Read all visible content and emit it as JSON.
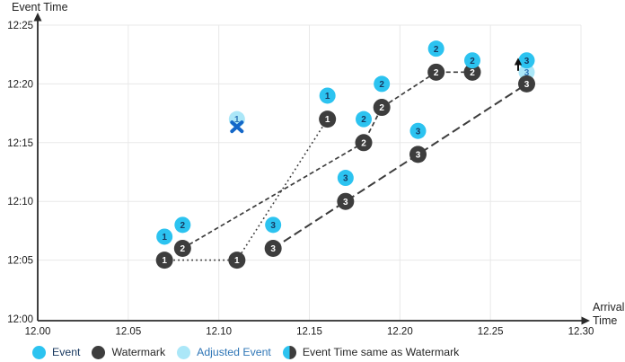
{
  "colors": {
    "event": "#2cc3f0",
    "adjusted": "#abe7f8",
    "watermark": "#3d3d3d",
    "line": "#3d3d3d",
    "grid": "#e8e8e8",
    "axis": "#2b2b2b",
    "tick_text": "#1a1a1a",
    "x_cross": "#1467c8",
    "event_number": "#17375e",
    "adjusted_number": "#2e75b6",
    "watermark_number": "#ffffff",
    "legend_event_text": "#17375e",
    "legend_adjusted_text": "#2e75b6",
    "legend_text": "#262626"
  },
  "chart_data": {
    "type": "scatter",
    "title": "",
    "xlabel": "Arrival Time",
    "xlabel_lines": [
      "Arrival",
      "Time"
    ],
    "ylabel": "Event Time",
    "xlim": [
      12.0,
      12.3
    ],
    "ylim": [
      0,
      25
    ],
    "grid": true,
    "legend_position": "bottom",
    "x_ticks": [
      {
        "value": 12.0,
        "label": "12.00"
      },
      {
        "value": 12.05,
        "label": "12.05"
      },
      {
        "value": 12.1,
        "label": "12.10"
      },
      {
        "value": 12.15,
        "label": "12.15"
      },
      {
        "value": 12.2,
        "label": "12.20"
      },
      {
        "value": 12.25,
        "label": "12.25"
      },
      {
        "value": 12.3,
        "label": "12.30"
      }
    ],
    "y_ticks": [
      {
        "minutes": 0,
        "label": "12:00"
      },
      {
        "minutes": 5,
        "label": "12:05"
      },
      {
        "minutes": 10,
        "label": "12:10"
      },
      {
        "minutes": 15,
        "label": "12:15"
      },
      {
        "minutes": 20,
        "label": "12:20"
      },
      {
        "minutes": 25,
        "label": "12:25"
      }
    ],
    "events": [
      {
        "id": "1",
        "arrival": 12.07,
        "event_minutes": 7,
        "event_time": "12:07"
      },
      {
        "id": "2",
        "arrival": 12.08,
        "event_minutes": 8,
        "event_time": "12:08"
      },
      {
        "id": "3",
        "arrival": 12.13,
        "event_minutes": 8,
        "event_time": "12:08"
      },
      {
        "id": "1",
        "arrival": 12.16,
        "event_minutes": 19,
        "event_time": "12:19"
      },
      {
        "id": "3",
        "arrival": 12.17,
        "event_minutes": 12,
        "event_time": "12:12"
      },
      {
        "id": "2",
        "arrival": 12.18,
        "event_minutes": 17,
        "event_time": "12:17"
      },
      {
        "id": "2",
        "arrival": 12.19,
        "event_minutes": 20,
        "event_time": "12:20"
      },
      {
        "id": "3",
        "arrival": 12.21,
        "event_minutes": 16,
        "event_time": "12:16"
      },
      {
        "id": "2",
        "arrival": 12.22,
        "event_minutes": 23,
        "event_time": "12:23"
      },
      {
        "id": "2",
        "arrival": 12.24,
        "event_minutes": 22,
        "event_time": "12:22"
      },
      {
        "id": "3",
        "arrival": 12.27,
        "event_minutes": 22,
        "event_time": "12:22"
      }
    ],
    "watermarks": [
      {
        "id": "1",
        "arrival": 12.07,
        "event_minutes": 5,
        "event_time": "12:05"
      },
      {
        "id": "2",
        "arrival": 12.08,
        "event_minutes": 6,
        "event_time": "12:06"
      },
      {
        "id": "1",
        "arrival": 12.11,
        "event_minutes": 5,
        "event_time": "12:05"
      },
      {
        "id": "3",
        "arrival": 12.13,
        "event_minutes": 6,
        "event_time": "12:06"
      },
      {
        "id": "1",
        "arrival": 12.16,
        "event_minutes": 17,
        "event_time": "12:17"
      },
      {
        "id": "3",
        "arrival": 12.17,
        "event_minutes": 10,
        "event_time": "12:10"
      },
      {
        "id": "2",
        "arrival": 12.18,
        "event_minutes": 15,
        "event_time": "12:15"
      },
      {
        "id": "2",
        "arrival": 12.19,
        "event_minutes": 18,
        "event_time": "12:18"
      },
      {
        "id": "3",
        "arrival": 12.21,
        "event_minutes": 14,
        "event_time": "12:14"
      },
      {
        "id": "2",
        "arrival": 12.22,
        "event_minutes": 21,
        "event_time": "12:21"
      },
      {
        "id": "2",
        "arrival": 12.24,
        "event_minutes": 21,
        "event_time": "12:21"
      },
      {
        "id": "3",
        "arrival": 12.27,
        "event_minutes": 20,
        "event_time": "12:20"
      }
    ],
    "adjusted_events": [
      {
        "id": "1",
        "arrival": 12.11,
        "event_minutes": 17,
        "event_time": "12:17",
        "annotation": "x-cross"
      },
      {
        "id": "3",
        "arrival": 12.27,
        "event_minutes": 21,
        "event_time": "12:21",
        "annotation": "up-arrow"
      }
    ],
    "watermark_lines": [
      {
        "id": "1",
        "style": "dotted",
        "points": [
          [
            12.07,
            5
          ],
          [
            12.11,
            5
          ],
          [
            12.16,
            17
          ]
        ]
      },
      {
        "id": "2",
        "style": "dashed",
        "points": [
          [
            12.08,
            6
          ],
          [
            12.18,
            15
          ],
          [
            12.19,
            18
          ],
          [
            12.22,
            21
          ],
          [
            12.24,
            21
          ]
        ]
      },
      {
        "id": "3",
        "style": "long-dash",
        "points": [
          [
            12.13,
            6
          ],
          [
            12.17,
            10
          ],
          [
            12.21,
            14
          ],
          [
            12.27,
            20
          ]
        ]
      }
    ]
  },
  "legend": {
    "items": [
      {
        "label": "Event",
        "swatch": "event"
      },
      {
        "label": "Watermark",
        "swatch": "watermark"
      },
      {
        "label": "Adjusted Event",
        "swatch": "adjusted"
      },
      {
        "label": "Event Time same as Watermark",
        "swatch": "half"
      }
    ]
  }
}
